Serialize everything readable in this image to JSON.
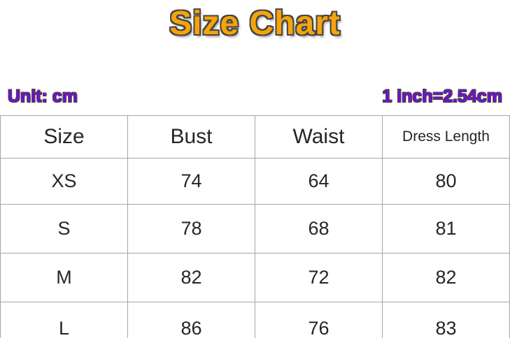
{
  "page": {
    "title": "Size Chart",
    "unit_label": "Unit: cm",
    "conversion_label": "1 inch=2.54cm"
  },
  "colors": {
    "title_orange": "#F6A40B",
    "outline_dark": "#474645",
    "purple": "#7210CE",
    "grid_line": "#A5A5A5",
    "cell_text": "#262626"
  },
  "chart_data": {
    "type": "table",
    "title": "Size Chart",
    "unit": "cm",
    "note": "1 inch=2.54cm",
    "columns": [
      "Size",
      "Bust",
      "Waist",
      "Dress Length"
    ],
    "rows": [
      [
        "XS",
        "74",
        "64",
        "80"
      ],
      [
        "S",
        "78",
        "68",
        "81"
      ],
      [
        "M",
        "82",
        "72",
        "82"
      ],
      [
        "L",
        "86",
        "76",
        "83"
      ]
    ]
  }
}
